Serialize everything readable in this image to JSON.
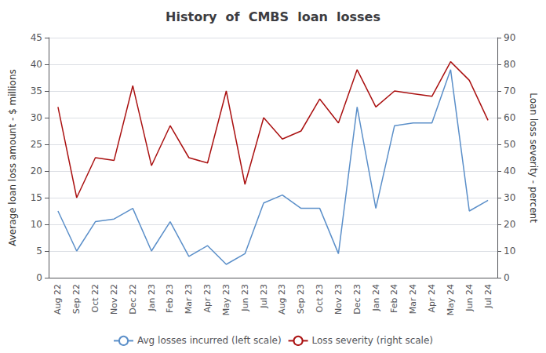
{
  "chart_data": {
    "type": "line",
    "title": "History  of  CMBS  loan  losses",
    "ylabel": "Average loan loss amount - $ millions",
    "y2label": "Loan loss severity - percent",
    "categories": [
      "Aug 22",
      "Sep 22",
      "Oct 22",
      "Nov 22",
      "Dec 22",
      "Jan 23",
      "Feb 23",
      "Mar 23",
      "Apr 23",
      "May 23",
      "Jun 23",
      "Jul 23",
      "Aug 23",
      "Sep 23",
      "Oct 23",
      "Nov 23",
      "Dec 23",
      "Jan 24",
      "Feb 24",
      "Mar 24",
      "Apr 24",
      "May 24",
      "Jun 24",
      "Jul 24"
    ],
    "series": [
      {
        "name": "Avg losses incurred (left scale)",
        "color": "#5b8fc9",
        "axis": "y",
        "values": [
          12.5,
          5.0,
          10.5,
          11.0,
          13.0,
          5.0,
          10.5,
          4.0,
          6.0,
          2.5,
          4.5,
          14.0,
          15.5,
          13.0,
          13.0,
          4.5,
          32.0,
          13.0,
          28.5,
          29.0,
          29.0,
          39.0,
          12.5,
          14.5
        ]
      },
      {
        "name": "Loss severity (right scale)",
        "color": "#aa1111",
        "axis": "y2",
        "values": [
          64.0,
          30.0,
          45.0,
          44.0,
          72.0,
          42.0,
          57.0,
          45.0,
          43.0,
          70.0,
          35.0,
          60.0,
          52.0,
          55.0,
          67.0,
          58.0,
          78.0,
          64.0,
          70.0,
          69.0,
          68.0,
          81.0,
          74.0,
          59.0
        ]
      }
    ],
    "ylim": [
      0,
      45
    ],
    "yticks": [
      0,
      5,
      10,
      15,
      20,
      25,
      30,
      35,
      40,
      45
    ],
    "y2lim": [
      0,
      90
    ],
    "y2ticks": [
      0,
      10,
      20,
      30,
      40,
      50,
      60,
      70,
      80,
      90
    ],
    "grid": true,
    "legend": "bottom"
  }
}
